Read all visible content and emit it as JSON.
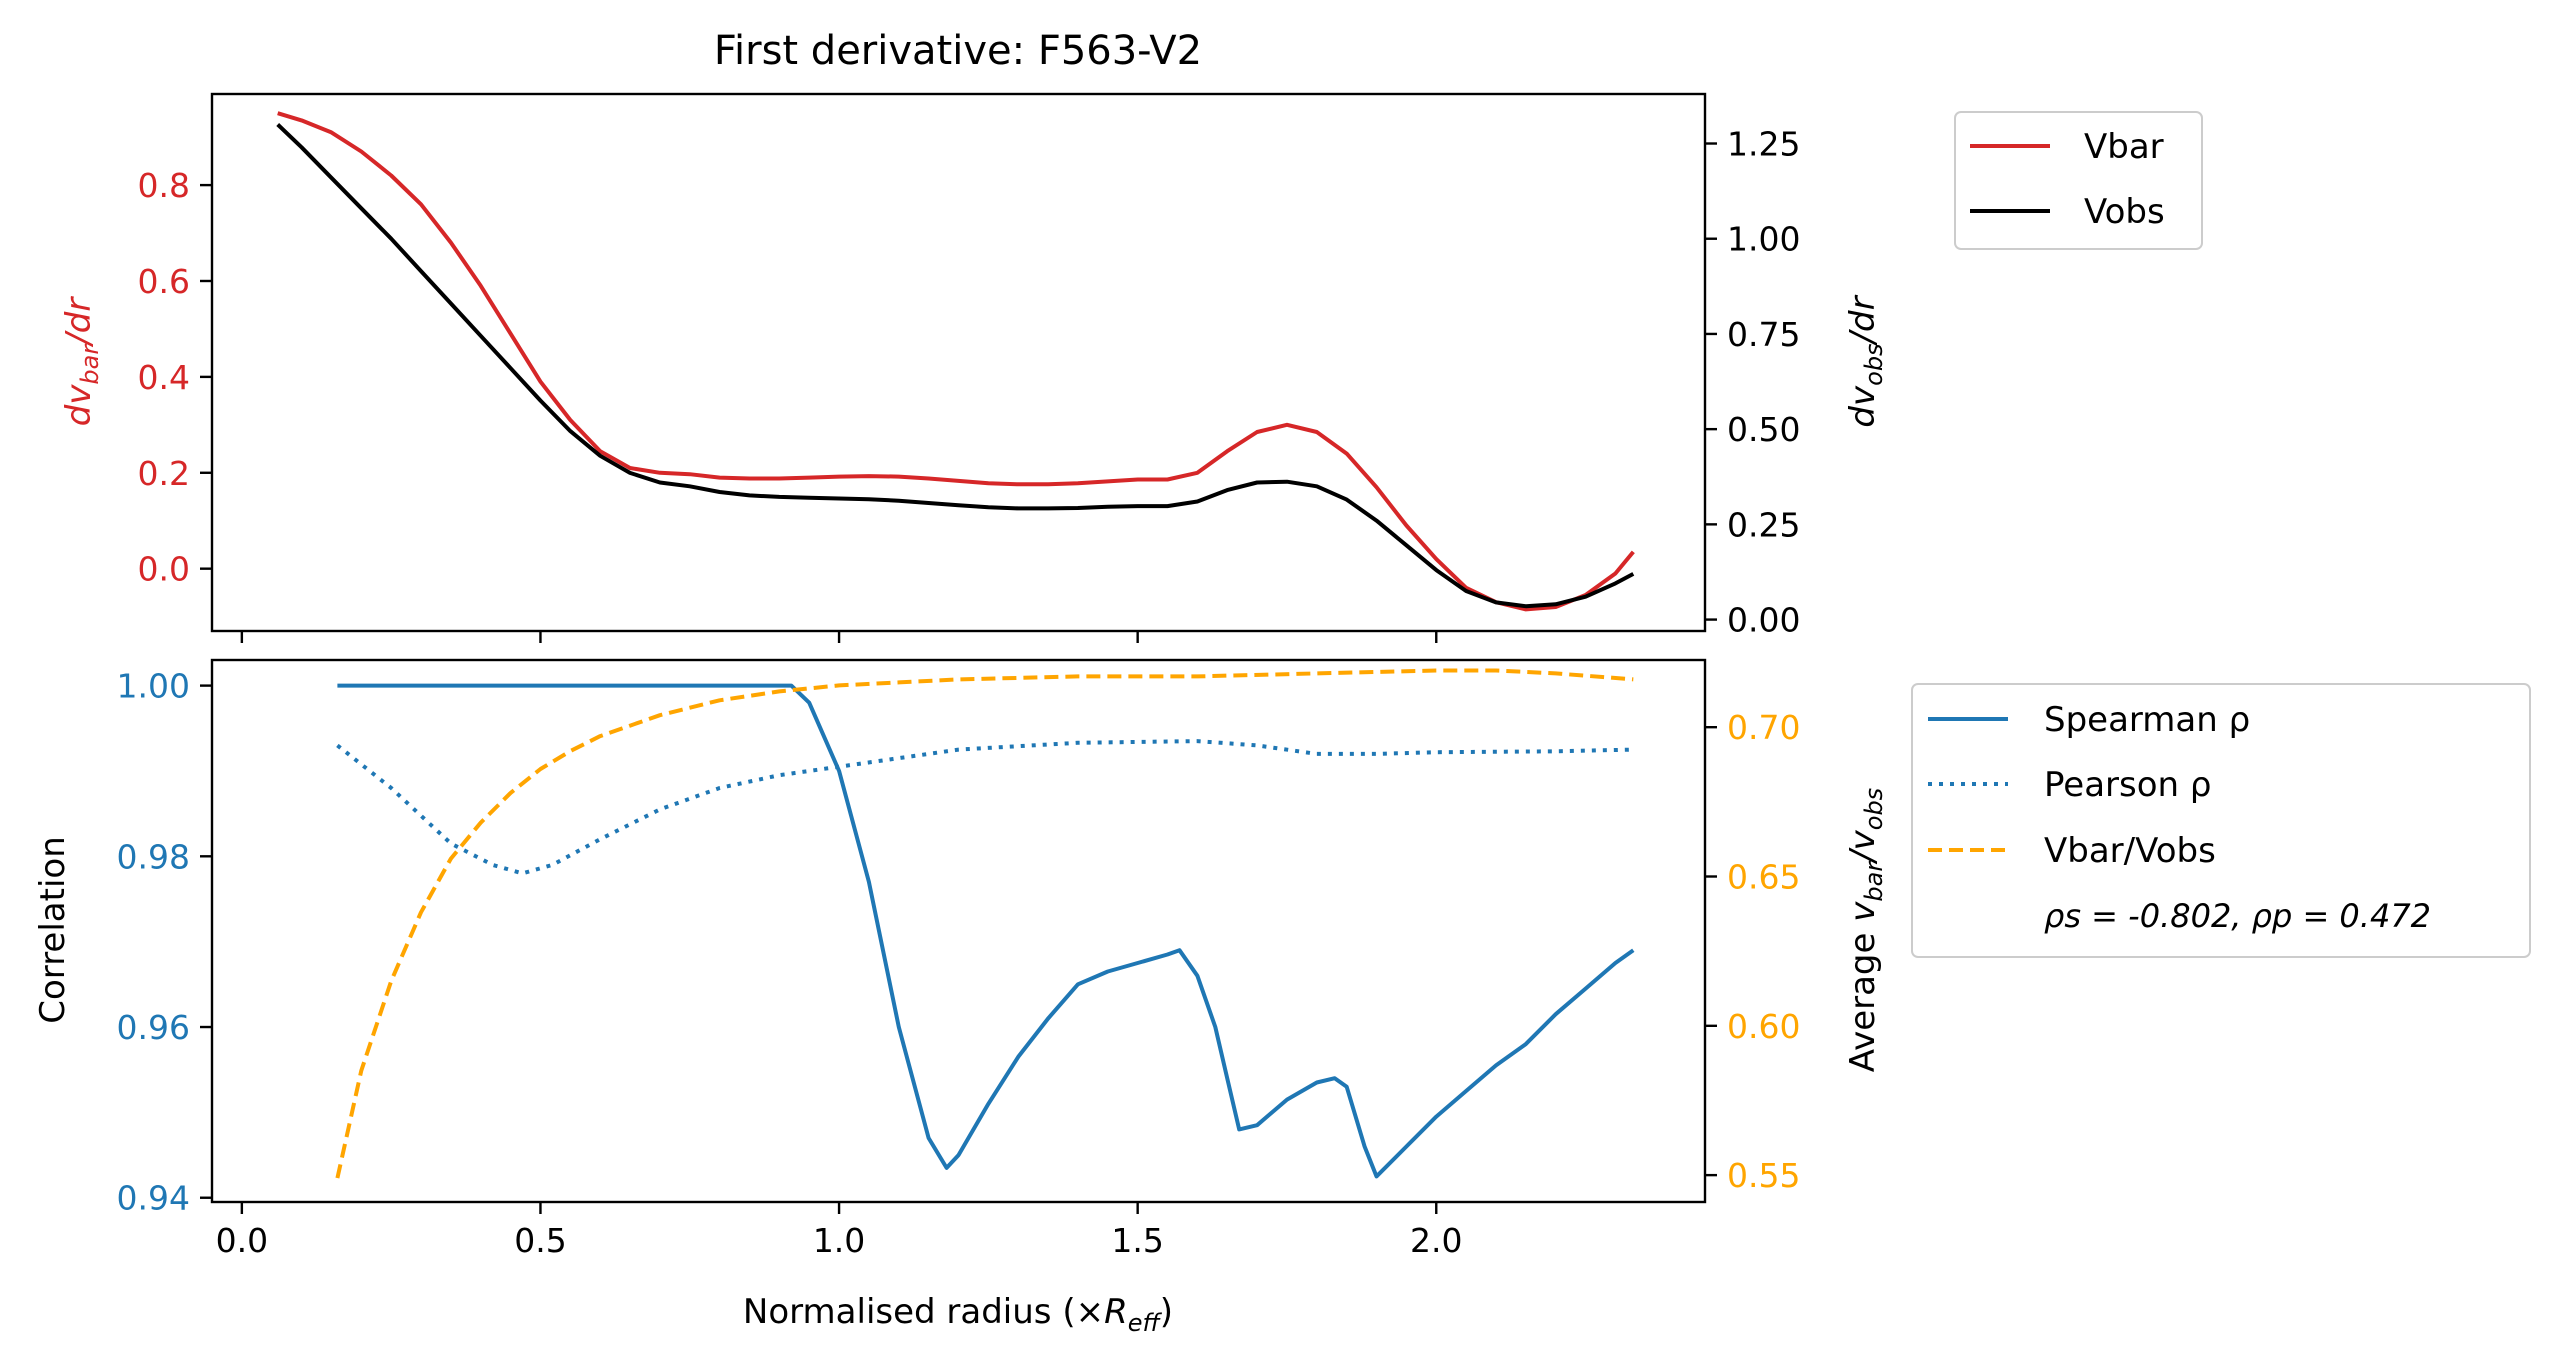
{
  "chart_data": [
    {
      "type": "line",
      "title": "First derivative: F563-V2",
      "ylabel_left": "dv_bar/dr",
      "ylabel_right": "dv_obs/dr",
      "xlim": [
        -0.05,
        2.45
      ],
      "ylim_left": [
        -0.13,
        0.99
      ],
      "ylim_right": [
        -0.03,
        1.38
      ],
      "x_ticks": [
        0.0,
        0.5,
        1.0,
        1.5,
        2.0
      ],
      "y_ticks_left": [
        "0.0",
        "0.2",
        "0.4",
        "0.6",
        "0.8"
      ],
      "y_ticks_right": [
        "0.00",
        "0.25",
        "0.50",
        "0.75",
        "1.00",
        "1.25"
      ],
      "legend_position": "outside-right",
      "grid": false,
      "series": [
        {
          "name": "Vbar",
          "axis": "left",
          "color": "#d62728",
          "style": "solid",
          "x": [
            0.06,
            0.1,
            0.15,
            0.2,
            0.25,
            0.3,
            0.35,
            0.4,
            0.45,
            0.5,
            0.55,
            0.6,
            0.65,
            0.7,
            0.75,
            0.8,
            0.85,
            0.9,
            0.95,
            1.0,
            1.05,
            1.1,
            1.15,
            1.2,
            1.25,
            1.3,
            1.35,
            1.4,
            1.45,
            1.5,
            1.55,
            1.6,
            1.65,
            1.7,
            1.75,
            1.8,
            1.85,
            1.9,
            1.95,
            2.0,
            2.05,
            2.1,
            2.15,
            2.2,
            2.25,
            2.3,
            2.33
          ],
          "y": [
            0.95,
            0.935,
            0.91,
            0.87,
            0.82,
            0.76,
            0.68,
            0.59,
            0.49,
            0.39,
            0.31,
            0.245,
            0.21,
            0.2,
            0.197,
            0.19,
            0.188,
            0.188,
            0.19,
            0.192,
            0.193,
            0.192,
            0.188,
            0.183,
            0.178,
            0.176,
            0.176,
            0.178,
            0.182,
            0.186,
            0.186,
            0.2,
            0.245,
            0.285,
            0.3,
            0.285,
            0.24,
            0.17,
            0.09,
            0.02,
            -0.04,
            -0.07,
            -0.085,
            -0.08,
            -0.055,
            -0.01,
            0.035
          ]
        },
        {
          "name": "Vobs",
          "axis": "right",
          "color": "#000000",
          "style": "solid",
          "x": [
            0.06,
            0.1,
            0.15,
            0.2,
            0.25,
            0.3,
            0.35,
            0.4,
            0.45,
            0.5,
            0.55,
            0.6,
            0.65,
            0.7,
            0.75,
            0.8,
            0.85,
            0.9,
            0.95,
            1.0,
            1.05,
            1.1,
            1.15,
            1.2,
            1.25,
            1.3,
            1.35,
            1.4,
            1.45,
            1.5,
            1.55,
            1.6,
            1.65,
            1.7,
            1.75,
            1.8,
            1.85,
            1.9,
            1.95,
            2.0,
            2.05,
            2.1,
            2.15,
            2.2,
            2.25,
            2.3,
            2.33
          ],
          "y": [
            1.3,
            1.24,
            1.16,
            1.08,
            1.0,
            0.915,
            0.83,
            0.745,
            0.66,
            0.575,
            0.495,
            0.43,
            0.385,
            0.36,
            0.35,
            0.335,
            0.326,
            0.322,
            0.32,
            0.318,
            0.316,
            0.312,
            0.306,
            0.3,
            0.295,
            0.292,
            0.292,
            0.293,
            0.296,
            0.298,
            0.298,
            0.31,
            0.34,
            0.36,
            0.362,
            0.35,
            0.315,
            0.26,
            0.195,
            0.13,
            0.075,
            0.045,
            0.035,
            0.04,
            0.06,
            0.095,
            0.12
          ]
        }
      ]
    },
    {
      "type": "line",
      "title": "",
      "xlabel": "Normalised radius (×R_eff)",
      "ylabel_left": "Correlation",
      "ylabel_right": "Average v_bar/v_obs",
      "xlim": [
        -0.05,
        2.45
      ],
      "ylim_left": [
        0.9395,
        1.003
      ],
      "ylim_right": [
        0.541,
        0.7225
      ],
      "x_ticks": [
        "0.0",
        "0.5",
        "1.0",
        "1.5",
        "2.0"
      ],
      "y_ticks_left": [
        "0.94",
        "0.96",
        "0.98",
        "1.00"
      ],
      "y_ticks_right": [
        "0.55",
        "0.60",
        "0.65",
        "0.70"
      ],
      "legend_position": "outside-right",
      "legend_note": "ρs = -0.802, ρp = 0.472",
      "grid": false,
      "series": [
        {
          "name": "Spearman ρ",
          "axis": "left",
          "color": "#1f77b4",
          "style": "solid",
          "x": [
            0.16,
            0.3,
            0.5,
            0.7,
            0.85,
            0.92,
            0.95,
            1.0,
            1.05,
            1.1,
            1.15,
            1.18,
            1.2,
            1.25,
            1.3,
            1.35,
            1.4,
            1.45,
            1.5,
            1.55,
            1.57,
            1.6,
            1.63,
            1.65,
            1.67,
            1.7,
            1.75,
            1.8,
            1.83,
            1.85,
            1.88,
            1.9,
            1.95,
            2.0,
            2.05,
            2.1,
            2.15,
            2.2,
            2.25,
            2.3,
            2.33
          ],
          "y": [
            1.0,
            1.0,
            1.0,
            1.0,
            1.0,
            1.0,
            0.998,
            0.99,
            0.977,
            0.96,
            0.947,
            0.9435,
            0.945,
            0.951,
            0.9565,
            0.961,
            0.965,
            0.9665,
            0.9675,
            0.9685,
            0.969,
            0.966,
            0.96,
            0.954,
            0.948,
            0.9485,
            0.9515,
            0.9535,
            0.954,
            0.953,
            0.946,
            0.9425,
            0.946,
            0.9495,
            0.9525,
            0.9555,
            0.958,
            0.9615,
            0.9645,
            0.9675,
            0.969
          ]
        },
        {
          "name": "Pearson ρ",
          "axis": "left",
          "color": "#1f77b4",
          "style": "dotted",
          "x": [
            0.16,
            0.25,
            0.35,
            0.42,
            0.47,
            0.52,
            0.6,
            0.7,
            0.8,
            0.9,
            1.0,
            1.2,
            1.4,
            1.6,
            1.7,
            1.8,
            1.9,
            2.0,
            2.2,
            2.33
          ],
          "y": [
            0.993,
            0.988,
            0.9815,
            0.979,
            0.978,
            0.979,
            0.982,
            0.9855,
            0.988,
            0.9895,
            0.9905,
            0.9925,
            0.9933,
            0.9935,
            0.993,
            0.992,
            0.992,
            0.9922,
            0.9923,
            0.9925
          ]
        },
        {
          "name": "Vbar/Vobs",
          "axis": "right",
          "color": "#ffa500",
          "style": "dashed",
          "x": [
            0.16,
            0.2,
            0.25,
            0.3,
            0.35,
            0.4,
            0.45,
            0.5,
            0.55,
            0.6,
            0.7,
            0.8,
            0.9,
            1.0,
            1.1,
            1.2,
            1.4,
            1.6,
            1.8,
            2.0,
            2.1,
            2.2,
            2.33
          ],
          "y": [
            0.549,
            0.585,
            0.615,
            0.638,
            0.656,
            0.668,
            0.678,
            0.686,
            0.692,
            0.697,
            0.704,
            0.709,
            0.712,
            0.714,
            0.715,
            0.716,
            0.717,
            0.717,
            0.718,
            0.719,
            0.719,
            0.718,
            0.716
          ]
        }
      ]
    }
  ]
}
